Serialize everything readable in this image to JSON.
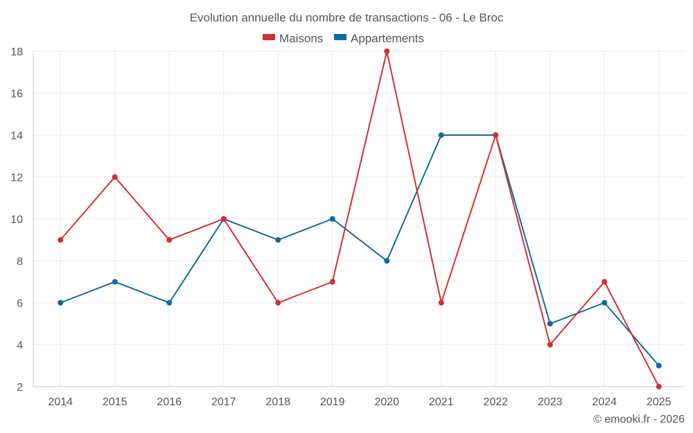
{
  "chart_data": {
    "type": "line",
    "title": "Evolution annuelle du nombre de transactions - 06 - Le Broc",
    "categories": [
      "2014",
      "2015",
      "2016",
      "2017",
      "2018",
      "2019",
      "2020",
      "2021",
      "2022",
      "2023",
      "2024",
      "2025"
    ],
    "series": [
      {
        "name": "Maisons",
        "color": "#d32f2f",
        "values": [
          9,
          12,
          9,
          10,
          6,
          7,
          18,
          6,
          14,
          4,
          7,
          2
        ]
      },
      {
        "name": "Appartements",
        "color": "#0f6a9e",
        "values": [
          6,
          7,
          6,
          10,
          9,
          10,
          8,
          14,
          14,
          5,
          6,
          3
        ]
      }
    ],
    "ylim": [
      2,
      18
    ],
    "yticks": [
      2,
      4,
      6,
      8,
      10,
      12,
      14,
      16,
      18
    ],
    "xlabel": "",
    "ylabel": "",
    "legend": "top-center",
    "grid": true
  },
  "credit": "© emooki.fr - 2026"
}
